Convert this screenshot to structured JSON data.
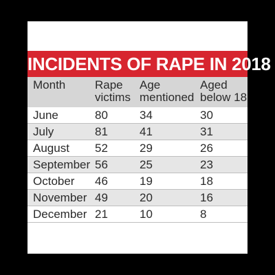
{
  "title": "INCIDENTS OF RAPE IN 2018",
  "colors": {
    "background": "#000000",
    "card": "#ffffff",
    "title_bar": "#d7252f",
    "header_bg": "#d6d6d6",
    "shaded_row": "#e6e6e6"
  },
  "chart_data": {
    "type": "table",
    "title": "INCIDENTS OF RAPE IN 2018",
    "columns": [
      [
        "Month"
      ],
      [
        "Rape",
        "victims"
      ],
      [
        "Age",
        "mentioned"
      ],
      [
        "Aged",
        "below 18"
      ]
    ],
    "rows": [
      [
        "June",
        "80",
        "34",
        "30"
      ],
      [
        "July",
        "81",
        "41",
        "31"
      ],
      [
        "August",
        "52",
        "29",
        "26"
      ],
      [
        "September",
        "56",
        "25",
        "23"
      ],
      [
        "October",
        "46",
        "19",
        "18"
      ],
      [
        "November",
        "49",
        "20",
        "16"
      ],
      [
        "December",
        "21",
        "10",
        "8"
      ]
    ]
  }
}
